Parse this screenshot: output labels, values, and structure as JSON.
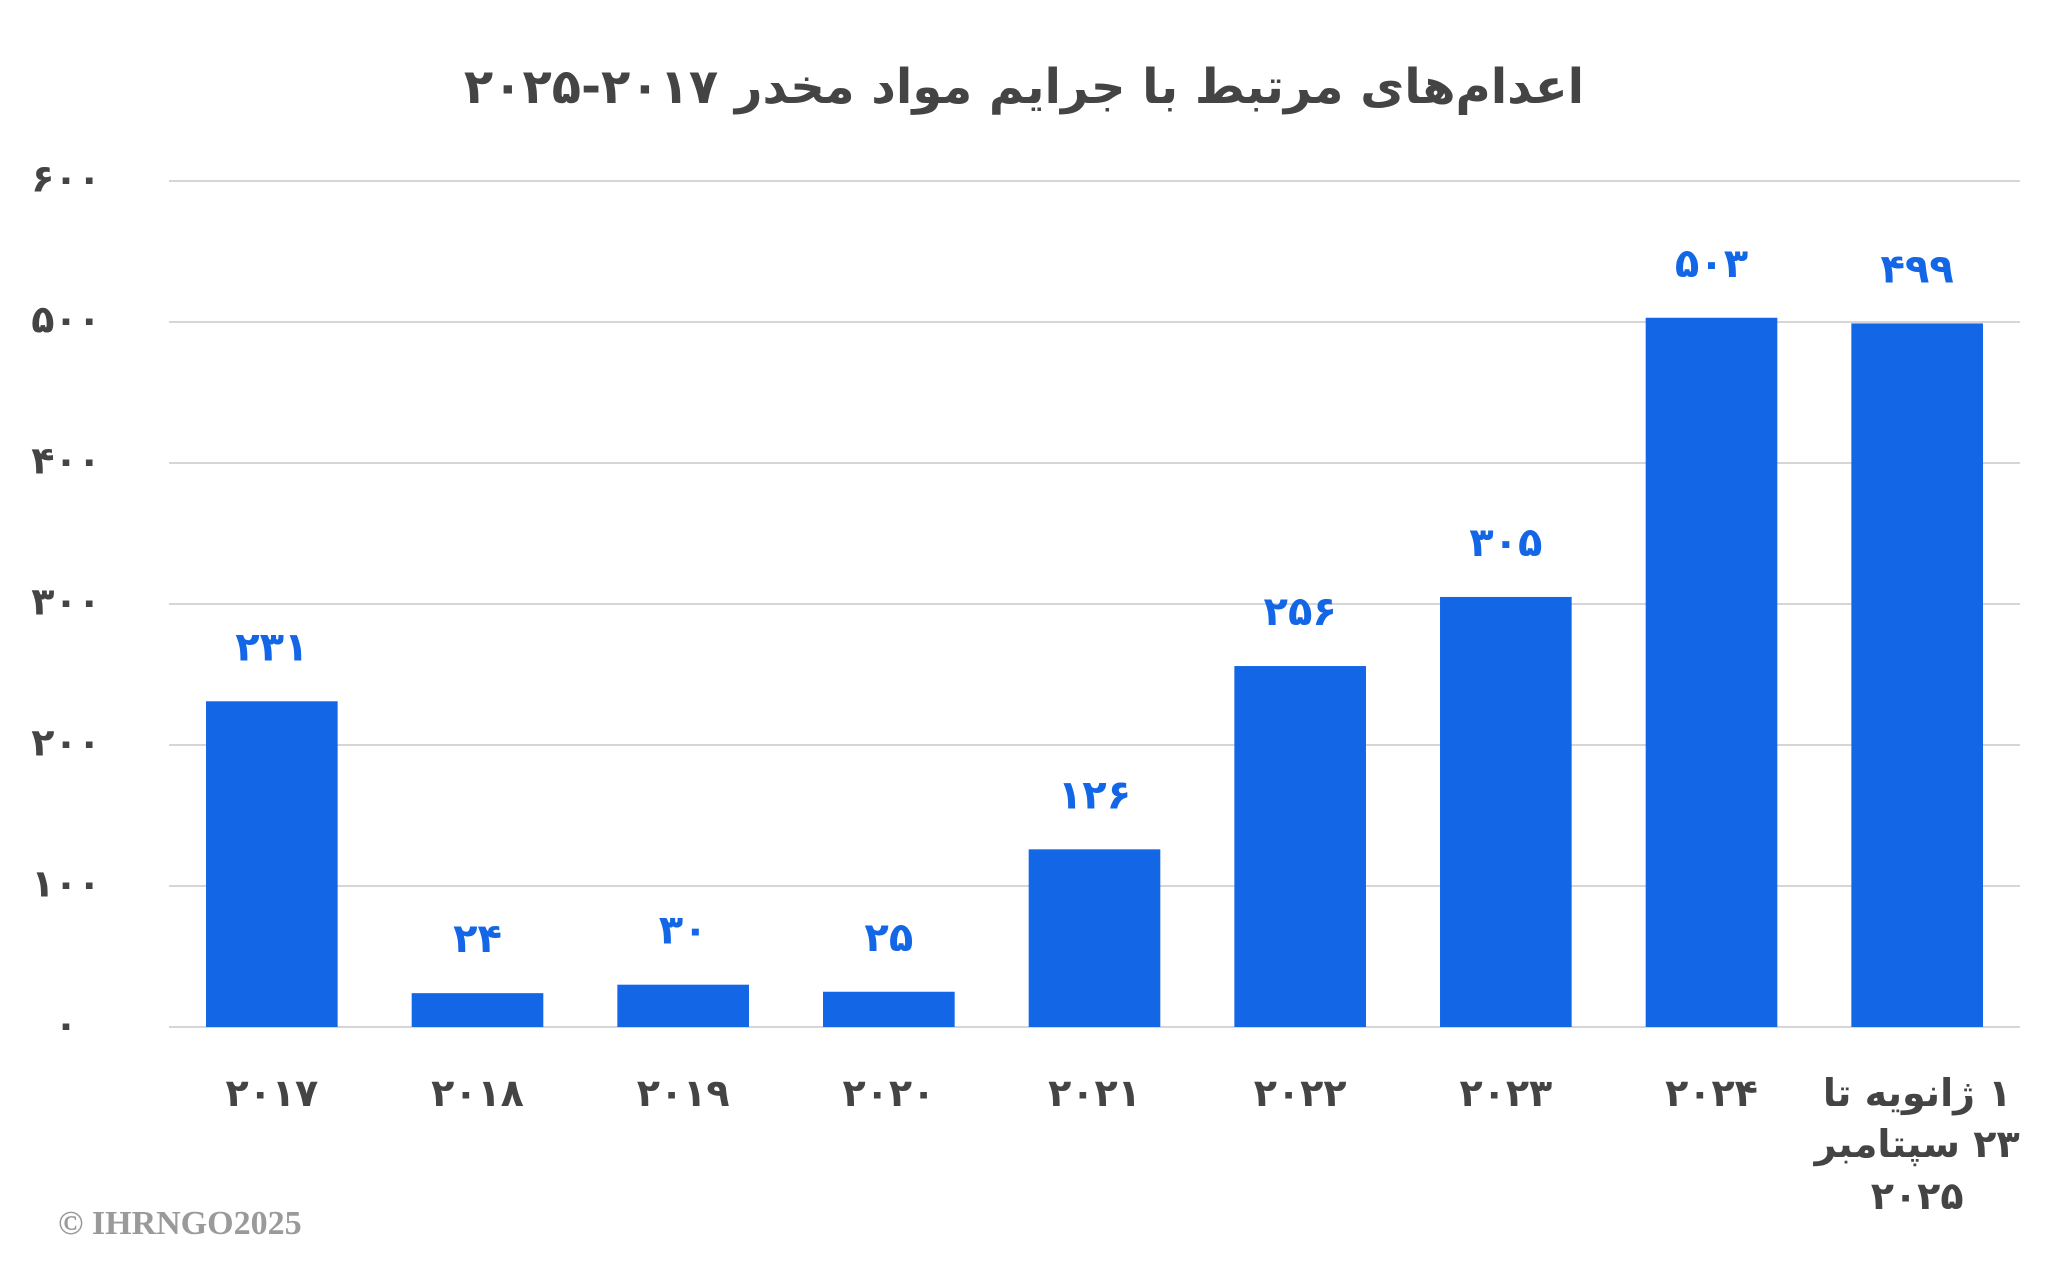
{
  "chart_data": {
    "type": "bar",
    "title": "اعدام‌های مرتبط با جرایم مواد مخدر ۲۰۱۷-۲۰۲۵",
    "categories": [
      "۲۰۱۷",
      "۲۰۱۸",
      "۲۰۱۹",
      "۲۰۲۰",
      "۲۰۲۱",
      "۲۰۲۲",
      "۲۰۲۳",
      "۲۰۲۴",
      "۱ ژانویه تا ۲۳ سپتامبر ۲۰۲۵"
    ],
    "values": [
      231,
      24,
      30,
      25,
      126,
      256,
      305,
      503,
      499
    ],
    "value_labels": [
      "۲۳۱",
      "۲۴",
      "۳۰",
      "۲۵",
      "۱۲۶",
      "۲۵۶",
      "۳۰۵",
      "۵۰۳",
      "۴۹۹"
    ],
    "color": "#1366e6",
    "ylim": [
      0,
      600
    ],
    "yticks": [
      {
        "value": 0,
        "label": "۰"
      },
      {
        "value": 100,
        "label": "۱۰۰"
      },
      {
        "value": 200,
        "label": "۲۰۰"
      },
      {
        "value": 300,
        "label": "۳۰۰"
      },
      {
        "value": 400,
        "label": "۴۰۰"
      },
      {
        "value": 500,
        "label": "۵۰۰"
      },
      {
        "value": 600,
        "label": "۶۰۰"
      }
    ],
    "grid": true,
    "footer": "© IHRNGO2025"
  }
}
